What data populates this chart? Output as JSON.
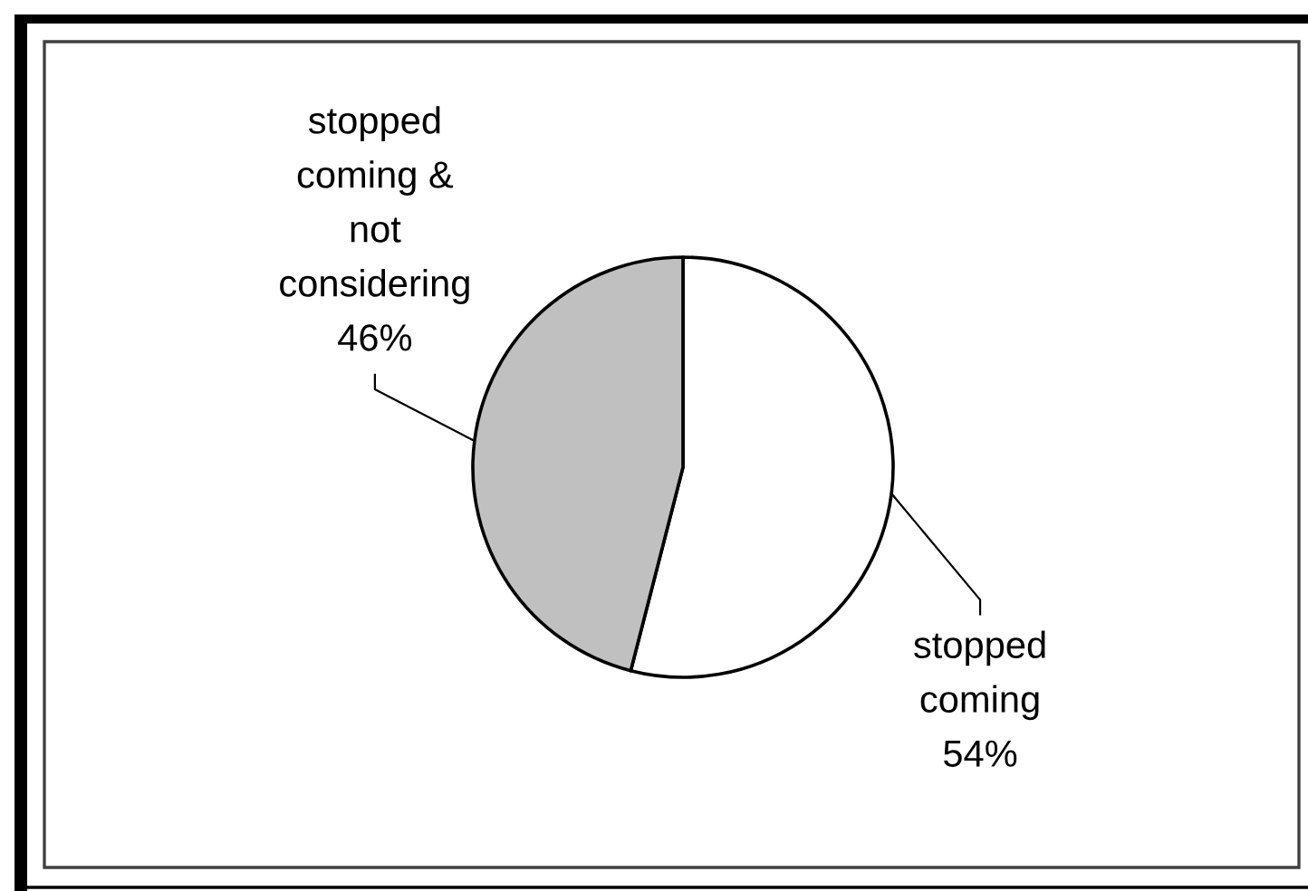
{
  "chart_data": {
    "type": "pie",
    "categories": [
      "stopped\ncoming",
      "stopped\ncoming &\nnot\nconsidering"
    ],
    "values": [
      54,
      46
    ],
    "colors": [
      "#ffffff",
      "#c0c0c0"
    ],
    "value_labels": [
      "54%",
      "46%"
    ]
  }
}
